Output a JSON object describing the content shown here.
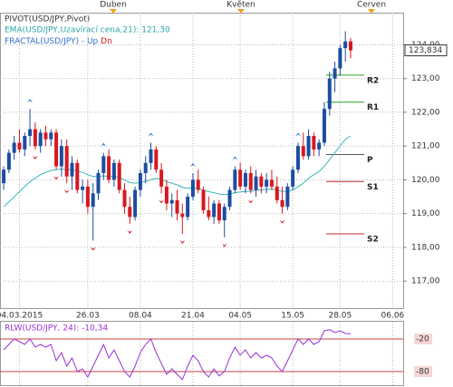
{
  "chart_data": {
    "type": "candlestick",
    "title": "PIVOT(USD/JPY,Pivot)",
    "up_color": "#1c4da1",
    "down_color": "#d6191f",
    "open": [
      119.9,
      120.3,
      120.8,
      121.1,
      120.9,
      121.3,
      121.5,
      121.0,
      121.4,
      121.2,
      121.4,
      120.4,
      121.0,
      120.1,
      120.5,
      119.7,
      119.8,
      119.2,
      119.6,
      120.2,
      120.7,
      120.0,
      120.5,
      119.7,
      119.2,
      118.9,
      119.7,
      120.2,
      120.5,
      120.9,
      120.3,
      119.8,
      119.3,
      119.4,
      119.0,
      118.9,
      119.5,
      120.0,
      119.7,
      119.1,
      118.9,
      119.3,
      118.8,
      119.2,
      119.7,
      120.3,
      119.8,
      120.2,
      119.7,
      120.1,
      119.8,
      120.0,
      119.8,
      119.4,
      119.2,
      119.8,
      120.3,
      121.0,
      120.7,
      121.3,
      120.9,
      121.1,
      122.1,
      123.0,
      123.3,
      123.9,
      124.1
    ],
    "high": [
      120.4,
      120.9,
      121.3,
      121.5,
      121.4,
      122.1,
      121.7,
      121.5,
      121.6,
      121.5,
      121.5,
      121.2,
      121.2,
      120.7,
      120.6,
      120.0,
      120.0,
      119.9,
      120.3,
      120.8,
      120.9,
      120.6,
      120.6,
      119.9,
      119.5,
      119.8,
      120.3,
      120.7,
      121.1,
      121.0,
      120.5,
      120.0,
      119.6,
      119.7,
      119.3,
      119.6,
      120.2,
      120.3,
      119.8,
      119.5,
      119.4,
      119.4,
      119.3,
      119.8,
      120.4,
      120.5,
      120.3,
      120.4,
      120.3,
      120.2,
      120.2,
      120.3,
      120.1,
      119.8,
      119.9,
      120.4,
      121.1,
      121.4,
      121.5,
      121.4,
      121.2,
      122.3,
      123.2,
      123.5,
      124.0,
      124.4,
      124.2
    ],
    "low": [
      119.7,
      120.2,
      120.6,
      120.8,
      120.7,
      121.0,
      120.9,
      120.8,
      121.0,
      121.0,
      120.3,
      120.1,
      119.9,
      119.7,
      119.6,
      119.3,
      119.0,
      118.2,
      119.4,
      120.0,
      119.9,
      119.8,
      119.6,
      119.0,
      118.7,
      118.8,
      119.5,
      119.9,
      120.3,
      120.2,
      119.6,
      119.1,
      118.9,
      118.8,
      118.4,
      118.8,
      119.4,
      119.6,
      119.0,
      118.8,
      118.7,
      118.7,
      118.3,
      119.1,
      119.6,
      119.7,
      119.6,
      119.6,
      119.5,
      119.6,
      119.6,
      119.7,
      119.3,
      119.0,
      119.1,
      119.7,
      120.2,
      120.6,
      120.6,
      120.7,
      120.7,
      121.0,
      121.9,
      122.6,
      123.1,
      123.5,
      123.6
    ],
    "close": [
      120.3,
      120.8,
      121.1,
      120.9,
      121.3,
      121.5,
      121.0,
      121.4,
      121.2,
      121.4,
      120.4,
      121.0,
      120.1,
      120.5,
      119.7,
      119.8,
      119.2,
      119.6,
      120.2,
      120.7,
      120.0,
      120.5,
      119.7,
      119.2,
      118.9,
      119.7,
      120.2,
      120.5,
      120.9,
      120.3,
      119.8,
      119.3,
      119.4,
      119.0,
      118.9,
      119.5,
      120.0,
      119.7,
      119.1,
      118.9,
      119.3,
      118.8,
      119.2,
      119.7,
      120.3,
      119.8,
      120.2,
      119.7,
      120.1,
      119.8,
      120.0,
      119.8,
      119.4,
      119.2,
      119.8,
      120.3,
      121.0,
      120.7,
      121.3,
      120.9,
      121.1,
      122.1,
      123.0,
      123.3,
      123.9,
      124.1,
      123.834
    ],
    "xlim": [
      -0.7,
      76
    ],
    "xticks": [
      {
        "value": 3,
        "label": "04.03.2015"
      },
      {
        "value": 16,
        "label": "26.03"
      },
      {
        "value": 26,
        "label": "08.04"
      },
      {
        "value": 36,
        "label": "21.04"
      },
      {
        "value": 45,
        "label": "04.05"
      },
      {
        "value": 55,
        "label": "15.05"
      },
      {
        "value": 64,
        "label": "28.05"
      },
      {
        "value": 74,
        "label": "06.06"
      }
    ],
    "ylim": [
      116.2,
      124.95
    ],
    "yticks": [
      {
        "value": 124,
        "label": "124,00"
      },
      {
        "value": 123,
        "label": "123,00"
      },
      {
        "value": 122,
        "label": "122,00"
      },
      {
        "value": 121,
        "label": "121,00"
      },
      {
        "value": 120,
        "label": "120,00"
      },
      {
        "value": 119,
        "label": "119,00"
      },
      {
        "value": 118,
        "label": "118,00"
      },
      {
        "value": 117,
        "label": "117,00"
      }
    ],
    "grid": true,
    "last_price": {
      "value": 123.834,
      "label": "123,834"
    },
    "period_markers": [
      "Duben",
      "Květen",
      "Červen"
    ],
    "ema": {
      "name": "EMA(USD/JPY,Uzavírací cena,21): 121,30",
      "color": "#35b9bd",
      "values": [
        119.2,
        119.35,
        119.5,
        119.65,
        119.8,
        119.95,
        120.05,
        120.15,
        120.22,
        120.28,
        120.3,
        120.32,
        120.3,
        120.3,
        120.26,
        120.22,
        120.15,
        120.1,
        120.1,
        120.12,
        120.1,
        120.1,
        120.07,
        120.0,
        119.92,
        119.9,
        119.92,
        119.95,
        120.0,
        120.05,
        120.02,
        119.95,
        119.9,
        119.85,
        119.78,
        119.75,
        119.76,
        119.74,
        119.7,
        119.65,
        119.62,
        119.58,
        119.56,
        119.58,
        119.62,
        119.64,
        119.66,
        119.66,
        119.7,
        119.7,
        119.72,
        119.72,
        119.7,
        119.66,
        119.66,
        119.7,
        119.8,
        119.9,
        120.05,
        120.15,
        120.25,
        120.4,
        120.6,
        120.8,
        121.0,
        121.2,
        121.3
      ]
    },
    "fractal": {
      "name": "FRACTAL(USD/JPY) -",
      "up": {
        "name": "Up",
        "color": "#2f6fd0",
        "values": [
          null,
          null,
          null,
          null,
          null,
          122.1,
          null,
          null,
          null,
          null,
          null,
          null,
          null,
          null,
          null,
          null,
          null,
          null,
          null,
          120.8,
          null,
          null,
          null,
          null,
          null,
          null,
          null,
          null,
          121.1,
          null,
          null,
          null,
          null,
          null,
          null,
          null,
          120.2,
          null,
          null,
          null,
          null,
          null,
          null,
          null,
          120.4,
          null,
          null,
          null,
          null,
          null,
          null,
          null,
          null,
          null,
          null,
          null,
          121.1,
          null,
          null,
          null,
          null,
          null,
          null,
          null,
          null,
          null,
          null
        ]
      },
      "down": {
        "name": "Dn",
        "color": "#d6191f",
        "values": [
          null,
          null,
          null,
          null,
          null,
          null,
          120.9,
          null,
          null,
          null,
          120.3,
          null,
          119.9,
          null,
          null,
          null,
          null,
          118.2,
          null,
          null,
          null,
          null,
          null,
          null,
          118.7,
          null,
          null,
          null,
          null,
          null,
          119.6,
          null,
          null,
          null,
          118.4,
          null,
          null,
          null,
          null,
          null,
          null,
          null,
          118.3,
          null,
          null,
          null,
          null,
          119.6,
          null,
          null,
          null,
          null,
          null,
          119.0,
          null,
          null,
          null,
          null,
          null,
          null,
          null,
          null,
          null,
          null,
          null,
          null,
          null
        ]
      }
    },
    "pivots": [
      {
        "name": "R2",
        "value": 123.1,
        "color": "#2ca02c"
      },
      {
        "name": "R1",
        "value": 122.3,
        "color": "#2ca02c"
      },
      {
        "name": "P",
        "value": 120.75,
        "color": "#555555"
      },
      {
        "name": "S1",
        "value": 119.95,
        "color": "#c0282d"
      },
      {
        "name": "S2",
        "value": 118.4,
        "color": "#c0282d"
      }
    ],
    "oscillator": {
      "name": "RLW(USD/JPY, 24): -10,34",
      "color": "#9b30d9",
      "level_color": "#d04040",
      "ylim": [
        -100,
        0
      ],
      "yticks": [
        -20,
        -80
      ],
      "values": [
        -40,
        -30,
        -20,
        -25,
        -30,
        -20,
        -35,
        -30,
        -35,
        -30,
        -60,
        -45,
        -70,
        -55,
        -80,
        -75,
        -90,
        -70,
        -50,
        -30,
        -55,
        -40,
        -60,
        -80,
        -90,
        -70,
        -45,
        -30,
        -20,
        -45,
        -65,
        -85,
        -75,
        -85,
        -95,
        -70,
        -50,
        -60,
        -80,
        -90,
        -75,
        -88,
        -80,
        -55,
        -35,
        -50,
        -40,
        -55,
        -45,
        -55,
        -50,
        -55,
        -70,
        -80,
        -60,
        -40,
        -20,
        -30,
        -20,
        -30,
        -25,
        -5,
        -3,
        -8,
        -5,
        -10,
        -10.34
      ]
    }
  }
}
